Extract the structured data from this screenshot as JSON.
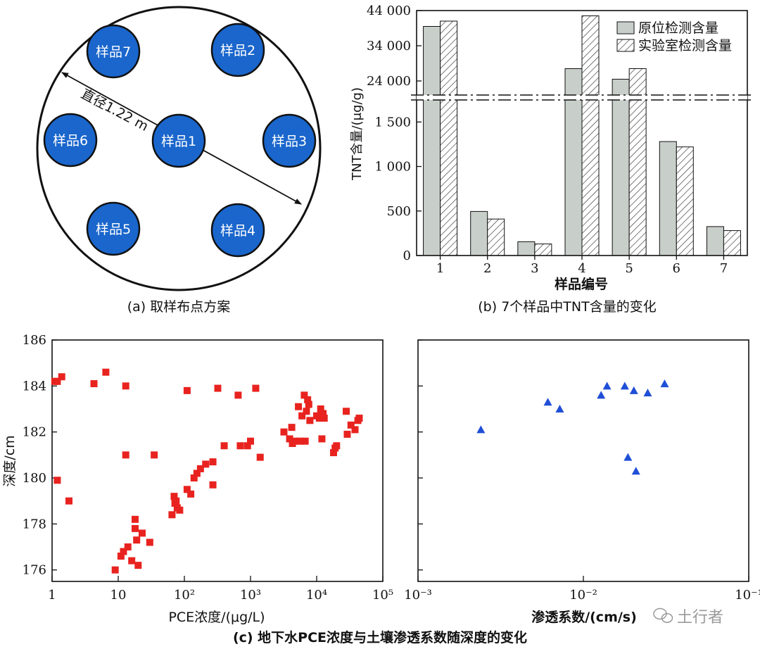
{
  "panel_a": {
    "caption": "(a)  取样布点方案",
    "diameter_label": "直径1.22 m",
    "sample_labels": [
      "样品1",
      "样品2",
      "样品3",
      "样品4",
      "样品5",
      "样品6",
      "样品7"
    ],
    "colors": {
      "sample_fill": "#1a66cc",
      "outline": "#111111"
    }
  },
  "panel_b": {
    "caption": "(b)  7个样品中TNT含量的变化",
    "ylabel": "TNT含量/(μg/g)",
    "xlabel": "样品编号",
    "yticks_lower": [
      "0",
      "500",
      "1 000",
      "1 500"
    ],
    "yticks_upper": [
      "24 000",
      "34 000",
      "44 000"
    ]
  },
  "panel_c": {
    "caption": "(c)  地下水PCE浓度与土壤渗透系数随深度的变化",
    "left_xlabel": "PCE浓度/(μg/L)",
    "right_xlabel": "渗透系数/(cm/s)",
    "ylabel": "深度/cm",
    "yticks": [
      "176",
      "178",
      "180",
      "182",
      "184",
      "186"
    ],
    "left_xticks": [
      "1",
      "10",
      "10²",
      "10³",
      "10⁴",
      "10⁵"
    ],
    "right_xticks": [
      "10⁻³",
      "10⁻²",
      "10⁻¹"
    ]
  },
  "watermark": "土行者",
  "chart_data": [
    {
      "type": "bar",
      "title": "",
      "xlabel": "样品编号",
      "ylabel": "TNT含量/(μg/g)",
      "categories": [
        "1",
        "2",
        "3",
        "4",
        "5",
        "6",
        "7"
      ],
      "axis_break": {
        "lower_range": [
          0,
          1700
        ],
        "upper_range": [
          20000,
          44000
        ]
      },
      "legend_position": "top-right",
      "series": [
        {
          "name": "原位检测含量",
          "color": "#c8cec9",
          "pattern": "solid",
          "values": [
            39500,
            495,
            155,
            27500,
            24500,
            1280,
            325
          ]
        },
        {
          "name": "实验室检测含量",
          "color": "#ffffff",
          "pattern": "hatch",
          "values": [
            41000,
            410,
            130,
            42500,
            27500,
            1220,
            280
          ]
        }
      ]
    },
    {
      "type": "scatter",
      "title": "",
      "xlabel": "PCE浓度/(μg/L)",
      "ylabel": "深度/cm",
      "xscale": "log",
      "xlim": [
        1,
        100000
      ],
      "ylim": [
        175.5,
        186
      ],
      "marker": "square",
      "color": "#e8231f",
      "points": [
        [
          1.1,
          184.2
        ],
        [
          1.2,
          184.2
        ],
        [
          1.4,
          184.4
        ],
        [
          4.3,
          184.1
        ],
        [
          6.5,
          184.6
        ],
        [
          13,
          184.0
        ],
        [
          1.2,
          179.9
        ],
        [
          1.8,
          179.0
        ],
        [
          13,
          181.0
        ],
        [
          35,
          181.0
        ],
        [
          9,
          176.0
        ],
        [
          11,
          176.6
        ],
        [
          12,
          176.8
        ],
        [
          14,
          177.0
        ],
        [
          16,
          176.4
        ],
        [
          18,
          177.8
        ],
        [
          18,
          178.2
        ],
        [
          19,
          177.3
        ],
        [
          20,
          176.2
        ],
        [
          23,
          177.6
        ],
        [
          30,
          177.2
        ],
        [
          65,
          178.4
        ],
        [
          70,
          179.2
        ],
        [
          72,
          178.9
        ],
        [
          75,
          179.0
        ],
        [
          78,
          178.7
        ],
        [
          85,
          178.6
        ],
        [
          110,
          179.5
        ],
        [
          125,
          179.3
        ],
        [
          140,
          180.0
        ],
        [
          155,
          180.2
        ],
        [
          175,
          180.4
        ],
        [
          210,
          180.6
        ],
        [
          270,
          180.7
        ],
        [
          270,
          179.7
        ],
        [
          110,
          183.8
        ],
        [
          320,
          183.9
        ],
        [
          650,
          183.6
        ],
        [
          1200,
          183.9
        ],
        [
          400,
          181.4
        ],
        [
          700,
          181.4
        ],
        [
          900,
          181.4
        ],
        [
          1000,
          181.6
        ],
        [
          1400,
          180.9
        ],
        [
          3200,
          182.0
        ],
        [
          3900,
          181.7
        ],
        [
          4200,
          182.2
        ],
        [
          4300,
          181.5
        ],
        [
          4700,
          181.6
        ],
        [
          5300,
          183.1
        ],
        [
          5700,
          181.6
        ],
        [
          6000,
          182.7
        ],
        [
          6500,
          183.6
        ],
        [
          6700,
          181.6
        ],
        [
          7000,
          182.9
        ],
        [
          7300,
          183.4
        ],
        [
          7600,
          183.2
        ],
        [
          7900,
          182.5
        ],
        [
          10000,
          182.7
        ],
        [
          11000,
          182.6
        ],
        [
          11500,
          183.0
        ],
        [
          12000,
          181.7
        ],
        [
          12500,
          182.8
        ],
        [
          13000,
          182.6
        ],
        [
          18000,
          181.1
        ],
        [
          19000,
          181.3
        ],
        [
          20000,
          181.4
        ],
        [
          28000,
          182.9
        ],
        [
          29000,
          181.9
        ],
        [
          33000,
          182.3
        ],
        [
          38000,
          182.1
        ],
        [
          42000,
          182.5
        ],
        [
          44000,
          182.6
        ]
      ]
    },
    {
      "type": "scatter",
      "title": "",
      "xlabel": "渗透系数/(cm/s)",
      "ylabel": "深度/cm",
      "xscale": "log",
      "xlim": [
        0.001,
        0.1
      ],
      "ylim": [
        175.5,
        186
      ],
      "marker": "triangle",
      "color": "#1f4fd6",
      "points": [
        [
          0.0024,
          182.1
        ],
        [
          0.0061,
          183.3
        ],
        [
          0.0072,
          183.0
        ],
        [
          0.0128,
          183.6
        ],
        [
          0.0139,
          184.0
        ],
        [
          0.0178,
          184.0
        ],
        [
          0.0186,
          180.9
        ],
        [
          0.0202,
          183.8
        ],
        [
          0.0208,
          180.3
        ],
        [
          0.0245,
          183.7
        ],
        [
          0.031,
          184.1
        ]
      ]
    }
  ]
}
